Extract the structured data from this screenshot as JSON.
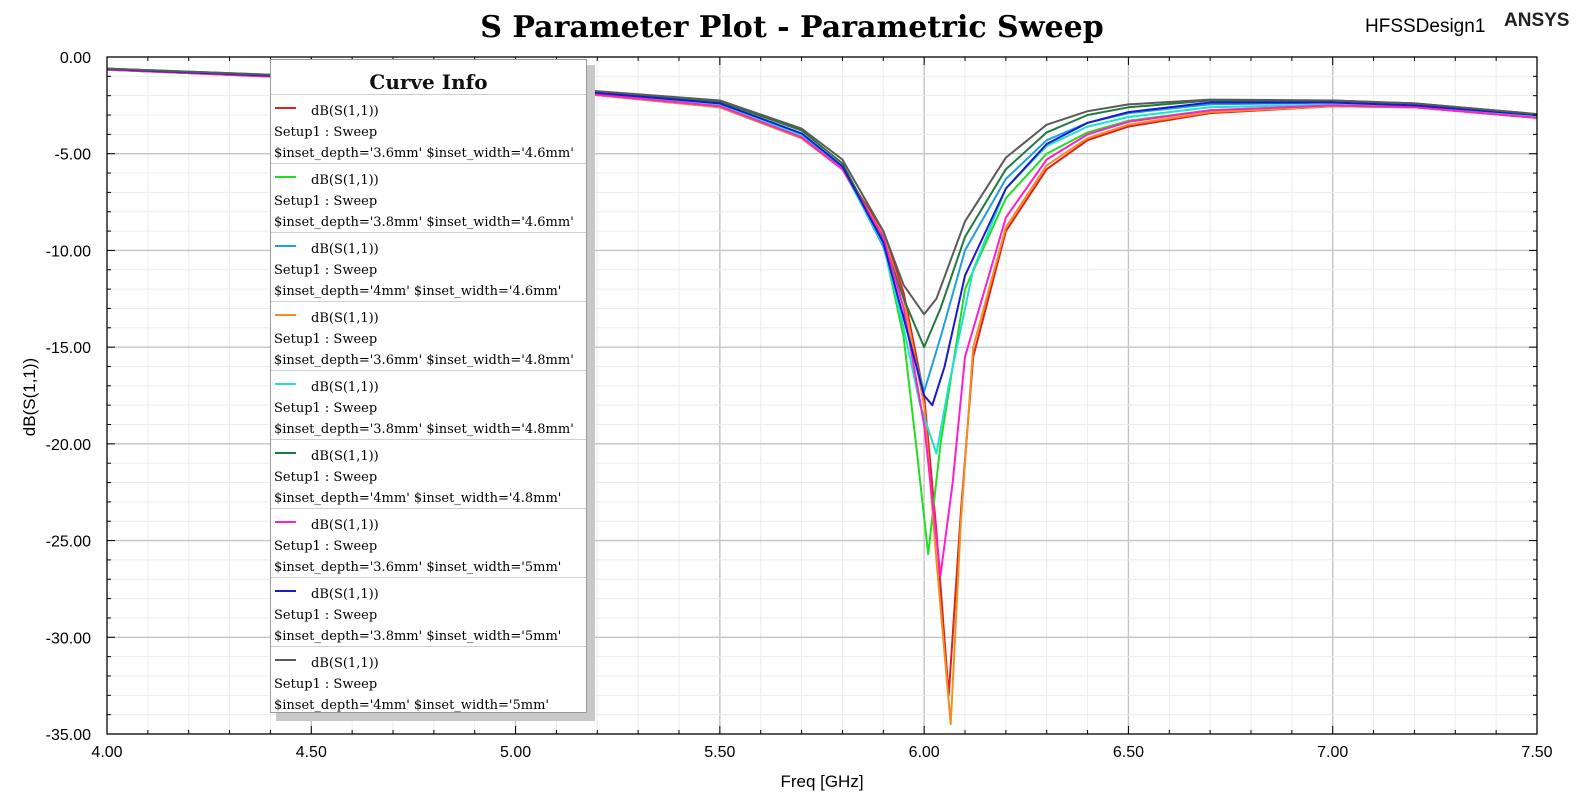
{
  "header": {
    "design_name": "HFSSDesign1",
    "brand": "ANSYS"
  },
  "legend_title": "Curve Info",
  "chart_data": {
    "type": "line",
    "title": "S Parameter Plot - Parametric Sweep",
    "xlabel": "Freq [GHz]",
    "ylabel": "dB(S(1,1))",
    "xlim": [
      4.0,
      7.5
    ],
    "ylim": [
      -35.0,
      0.0
    ],
    "xticks": [
      "4.00",
      "4.50",
      "5.00",
      "5.50",
      "6.00",
      "6.50",
      "7.00",
      "7.50"
    ],
    "yticks": [
      "0.00",
      "-5.00",
      "-10.00",
      "-15.00",
      "-20.00",
      "-25.00",
      "-30.00",
      "-35.00"
    ],
    "grid": true,
    "legend_position": "upper-left",
    "series": [
      {
        "name": "dB(S(1,1))",
        "setup": "Setup1 : Sweep",
        "params": "$inset_depth='3.6mm' $inset_width='4.6mm'",
        "color": "#e0201c",
        "points": [
          [
            4.0,
            -0.65
          ],
          [
            4.5,
            -1.1
          ],
          [
            5.0,
            -1.55
          ],
          [
            5.5,
            -2.6
          ],
          [
            5.7,
            -4.2
          ],
          [
            5.8,
            -5.8
          ],
          [
            5.9,
            -9.0
          ],
          [
            5.95,
            -12.2
          ],
          [
            6.0,
            -17.5
          ],
          [
            6.03,
            -24.5
          ],
          [
            6.06,
            -33.0
          ],
          [
            6.09,
            -23.5
          ],
          [
            6.12,
            -15.5
          ],
          [
            6.2,
            -9.0
          ],
          [
            6.3,
            -5.8
          ],
          [
            6.4,
            -4.3
          ],
          [
            6.5,
            -3.6
          ],
          [
            6.7,
            -2.9
          ],
          [
            7.0,
            -2.55
          ],
          [
            7.2,
            -2.6
          ],
          [
            7.5,
            -3.15
          ]
        ]
      },
      {
        "name": "dB(S(1,1))",
        "setup": "Setup1 : Sweep",
        "params": "$inset_depth='3.8mm' $inset_width='4.6mm'",
        "color": "#22dd22",
        "points": [
          [
            4.0,
            -0.65
          ],
          [
            4.5,
            -1.1
          ],
          [
            5.0,
            -1.55
          ],
          [
            5.5,
            -2.5
          ],
          [
            5.7,
            -4.1
          ],
          [
            5.8,
            -5.8
          ],
          [
            5.9,
            -9.6
          ],
          [
            5.95,
            -14.5
          ],
          [
            5.98,
            -20.0
          ],
          [
            6.01,
            -25.7
          ],
          [
            6.04,
            -20.0
          ],
          [
            6.1,
            -12.0
          ],
          [
            6.2,
            -7.3
          ],
          [
            6.3,
            -5.0
          ],
          [
            6.4,
            -3.9
          ],
          [
            6.5,
            -3.3
          ],
          [
            6.7,
            -2.75
          ],
          [
            7.0,
            -2.5
          ],
          [
            7.2,
            -2.6
          ],
          [
            7.5,
            -3.1
          ]
        ]
      },
      {
        "name": "dB(S(1,1))",
        "setup": "Setup1 : Sweep",
        "params": "$inset_depth='4mm' $inset_width='4.6mm'",
        "color": "#1f9fe0",
        "points": [
          [
            4.0,
            -0.65
          ],
          [
            4.5,
            -1.05
          ],
          [
            5.0,
            -1.5
          ],
          [
            5.5,
            -2.4
          ],
          [
            5.7,
            -4.0
          ],
          [
            5.8,
            -5.7
          ],
          [
            5.9,
            -9.8
          ],
          [
            5.95,
            -13.5
          ],
          [
            6.0,
            -17.3
          ],
          [
            6.04,
            -14.5
          ],
          [
            6.1,
            -10.0
          ],
          [
            6.2,
            -6.3
          ],
          [
            6.3,
            -4.3
          ],
          [
            6.4,
            -3.4
          ],
          [
            6.5,
            -2.9
          ],
          [
            6.7,
            -2.45
          ],
          [
            7.0,
            -2.35
          ],
          [
            7.2,
            -2.5
          ],
          [
            7.5,
            -3.0
          ]
        ]
      },
      {
        "name": "dB(S(1,1))",
        "setup": "Setup1 : Sweep",
        "params": "$inset_depth='3.6mm' $inset_width='4.8mm'",
        "color": "#f09020",
        "points": [
          [
            4.0,
            -0.65
          ],
          [
            4.5,
            -1.1
          ],
          [
            5.0,
            -1.55
          ],
          [
            5.5,
            -2.6
          ],
          [
            5.7,
            -4.2
          ],
          [
            5.8,
            -5.8
          ],
          [
            5.9,
            -9.2
          ],
          [
            5.95,
            -12.5
          ],
          [
            6.0,
            -18.0
          ],
          [
            6.03,
            -26.0
          ],
          [
            6.065,
            -34.5
          ],
          [
            6.09,
            -24.0
          ],
          [
            6.12,
            -15.0
          ],
          [
            6.2,
            -8.8
          ],
          [
            6.3,
            -5.6
          ],
          [
            6.4,
            -4.2
          ],
          [
            6.5,
            -3.5
          ],
          [
            6.7,
            -2.85
          ],
          [
            7.0,
            -2.55
          ],
          [
            7.2,
            -2.6
          ],
          [
            7.5,
            -3.15
          ]
        ]
      },
      {
        "name": "dB(S(1,1))",
        "setup": "Setup1 : Sweep",
        "params": "$inset_depth='3.8mm' $inset_width='4.8mm'",
        "color": "#20e0d0",
        "points": [
          [
            4.0,
            -0.65
          ],
          [
            4.5,
            -1.05
          ],
          [
            5.0,
            -1.5
          ],
          [
            5.5,
            -2.45
          ],
          [
            5.7,
            -4.05
          ],
          [
            5.8,
            -5.75
          ],
          [
            5.9,
            -9.7
          ],
          [
            5.95,
            -14.0
          ],
          [
            5.99,
            -18.0
          ],
          [
            6.03,
            -20.5
          ],
          [
            6.06,
            -17.0
          ],
          [
            6.12,
            -11.0
          ],
          [
            6.2,
            -6.8
          ],
          [
            6.3,
            -4.6
          ],
          [
            6.4,
            -3.6
          ],
          [
            6.5,
            -3.1
          ],
          [
            6.7,
            -2.6
          ],
          [
            7.0,
            -2.45
          ],
          [
            7.2,
            -2.55
          ],
          [
            7.5,
            -3.05
          ]
        ]
      },
      {
        "name": "dB(S(1,1))",
        "setup": "Setup1 : Sweep",
        "params": "$inset_depth='4mm' $inset_width='4.8mm'",
        "color": "#207a40",
        "points": [
          [
            4.0,
            -0.6
          ],
          [
            4.5,
            -1.0
          ],
          [
            5.0,
            -1.45
          ],
          [
            5.5,
            -2.3
          ],
          [
            5.7,
            -3.8
          ],
          [
            5.8,
            -5.5
          ],
          [
            5.9,
            -9.5
          ],
          [
            5.95,
            -12.5
          ],
          [
            6.0,
            -15.0
          ],
          [
            6.04,
            -13.0
          ],
          [
            6.1,
            -9.3
          ],
          [
            6.2,
            -5.8
          ],
          [
            6.3,
            -3.9
          ],
          [
            6.4,
            -3.0
          ],
          [
            6.5,
            -2.6
          ],
          [
            6.7,
            -2.25
          ],
          [
            7.0,
            -2.25
          ],
          [
            7.2,
            -2.4
          ],
          [
            7.5,
            -2.95
          ]
        ]
      },
      {
        "name": "dB(S(1,1))",
        "setup": "Setup1 : Sweep",
        "params": "$inset_depth='3.6mm' $inset_width='5mm'",
        "color": "#ff20cc",
        "points": [
          [
            4.0,
            -0.65
          ],
          [
            4.5,
            -1.1
          ],
          [
            5.0,
            -1.55
          ],
          [
            5.5,
            -2.55
          ],
          [
            5.7,
            -4.15
          ],
          [
            5.8,
            -5.8
          ],
          [
            5.9,
            -9.3
          ],
          [
            5.95,
            -13.0
          ],
          [
            6.0,
            -19.0
          ],
          [
            6.04,
            -26.8
          ],
          [
            6.07,
            -22.0
          ],
          [
            6.1,
            -15.5
          ],
          [
            6.2,
            -8.3
          ],
          [
            6.3,
            -5.3
          ],
          [
            6.4,
            -4.0
          ],
          [
            6.5,
            -3.35
          ],
          [
            6.7,
            -2.75
          ],
          [
            7.0,
            -2.5
          ],
          [
            7.2,
            -2.6
          ],
          [
            7.5,
            -3.15
          ]
        ]
      },
      {
        "name": "dB(S(1,1))",
        "setup": "Setup1 : Sweep",
        "params": "$inset_depth='3.8mm' $inset_width='5mm'",
        "color": "#1a1acc",
        "points": [
          [
            4.0,
            -0.62
          ],
          [
            4.5,
            -1.05
          ],
          [
            5.0,
            -1.5
          ],
          [
            5.5,
            -2.4
          ],
          [
            5.7,
            -3.95
          ],
          [
            5.8,
            -5.65
          ],
          [
            5.9,
            -9.6
          ],
          [
            5.95,
            -13.5
          ],
          [
            6.0,
            -17.5
          ],
          [
            6.02,
            -18.0
          ],
          [
            6.05,
            -16.0
          ],
          [
            6.1,
            -11.3
          ],
          [
            6.2,
            -6.8
          ],
          [
            6.3,
            -4.5
          ],
          [
            6.4,
            -3.4
          ],
          [
            6.5,
            -2.85
          ],
          [
            6.7,
            -2.35
          ],
          [
            7.0,
            -2.35
          ],
          [
            7.2,
            -2.5
          ],
          [
            7.5,
            -3.0
          ]
        ]
      },
      {
        "name": "dB(S(1,1))",
        "setup": "Setup1 : Sweep",
        "params": "$inset_depth='4mm' $inset_width='5mm'",
        "color": "#5a5a5a",
        "points": [
          [
            4.0,
            -0.6
          ],
          [
            4.5,
            -1.0
          ],
          [
            5.0,
            -1.45
          ],
          [
            5.5,
            -2.25
          ],
          [
            5.7,
            -3.7
          ],
          [
            5.8,
            -5.3
          ],
          [
            5.9,
            -9.0
          ],
          [
            5.95,
            -11.8
          ],
          [
            6.0,
            -13.3
          ],
          [
            6.03,
            -12.5
          ],
          [
            6.1,
            -8.5
          ],
          [
            6.2,
            -5.2
          ],
          [
            6.3,
            -3.5
          ],
          [
            6.4,
            -2.8
          ],
          [
            6.5,
            -2.45
          ],
          [
            6.7,
            -2.2
          ],
          [
            7.0,
            -2.25
          ],
          [
            7.2,
            -2.4
          ],
          [
            7.5,
            -2.95
          ]
        ]
      }
    ]
  }
}
